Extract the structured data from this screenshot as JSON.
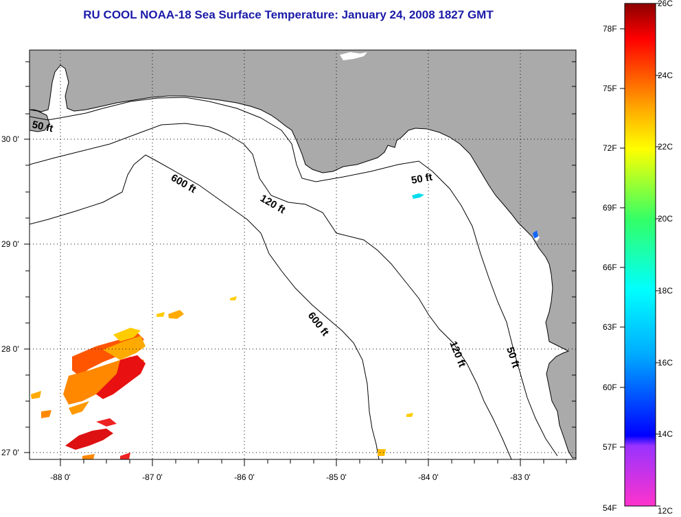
{
  "title": "RU COOL  NOAA-18  Sea Surface Temperature:  January 24, 2008 1827 GMT",
  "map": {
    "lat_labels": [
      "30 0'",
      "29 0'",
      "28 0'",
      "27 0'"
    ],
    "lon_labels": [
      "-88 0'",
      "-87 0'",
      "-86 0'",
      "-85 0'",
      "-84 0'",
      "-83 0'"
    ],
    "depth_contours": [
      "50 ft",
      "600 ft",
      "120 ft",
      "50 ft",
      "600 ft",
      "120 ft",
      "50 ft"
    ],
    "colors": {
      "land": "#aaaaaa",
      "water": "#ffffff",
      "grid": "#000000"
    }
  },
  "colorbar": {
    "fahrenheit_labels": [
      "78F",
      "75F",
      "72F",
      "69F",
      "66F",
      "63F",
      "60F",
      "57F",
      "54F"
    ],
    "celsius_labels": [
      "26C",
      "24C",
      "22C",
      "20C",
      "18C",
      "16C",
      "14C",
      "12C"
    ],
    "scale_min_c": 12,
    "scale_max_c": 26
  }
}
